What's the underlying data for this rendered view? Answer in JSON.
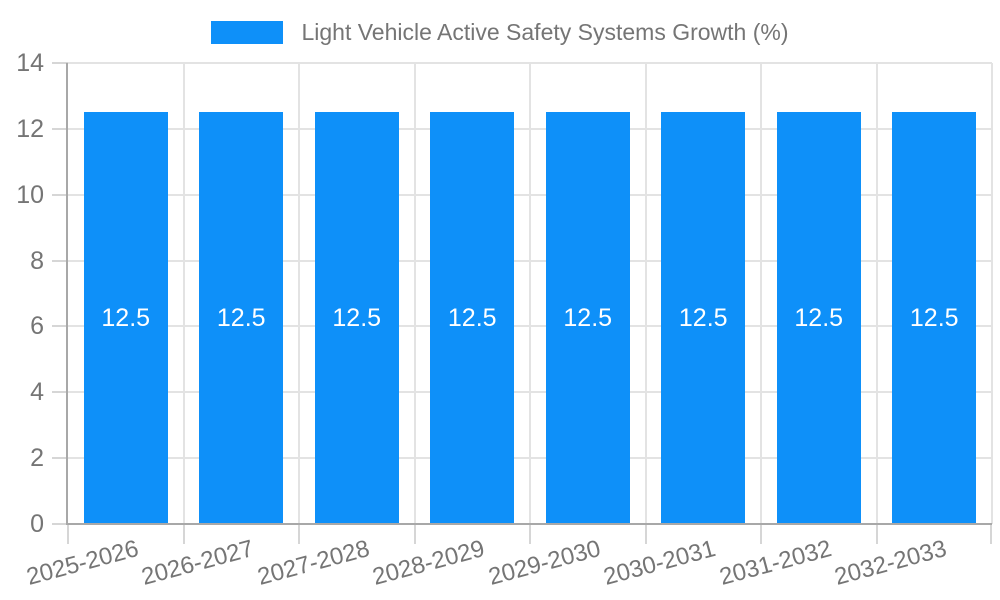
{
  "legend": {
    "label": "Light Vehicle Active Safety Systems Growth (%)"
  },
  "chart_data": {
    "type": "bar",
    "title": "Light Vehicle Active Safety Systems Growth (%)",
    "categories": [
      "2025-2026",
      "2026-2027",
      "2027-2028",
      "2028-2029",
      "2029-2030",
      "2030-2031",
      "2031-2032",
      "2032-2033"
    ],
    "values": [
      12.5,
      12.5,
      12.5,
      12.5,
      12.5,
      12.5,
      12.5,
      12.5
    ],
    "bar_labels": [
      "12.5",
      "12.5",
      "12.5",
      "12.5",
      "12.5",
      "12.5",
      "12.5",
      "12.5"
    ],
    "xlabel": "",
    "ylabel": "",
    "ylim": [
      0,
      14
    ],
    "y_ticks": [
      0,
      2,
      4,
      6,
      8,
      10,
      12,
      14
    ],
    "x_label_rotation_deg": -15,
    "grid": true,
    "legend_position": "top",
    "colors": {
      "bar": "#0E90F9",
      "bar_label": "#FFFFFF",
      "axis_text": "#757575",
      "grid_line": "#E3E3E3",
      "axis_line": "#A8A8A8",
      "tick_mark": "#D6D6D6",
      "background": "#FFFFFF"
    }
  }
}
